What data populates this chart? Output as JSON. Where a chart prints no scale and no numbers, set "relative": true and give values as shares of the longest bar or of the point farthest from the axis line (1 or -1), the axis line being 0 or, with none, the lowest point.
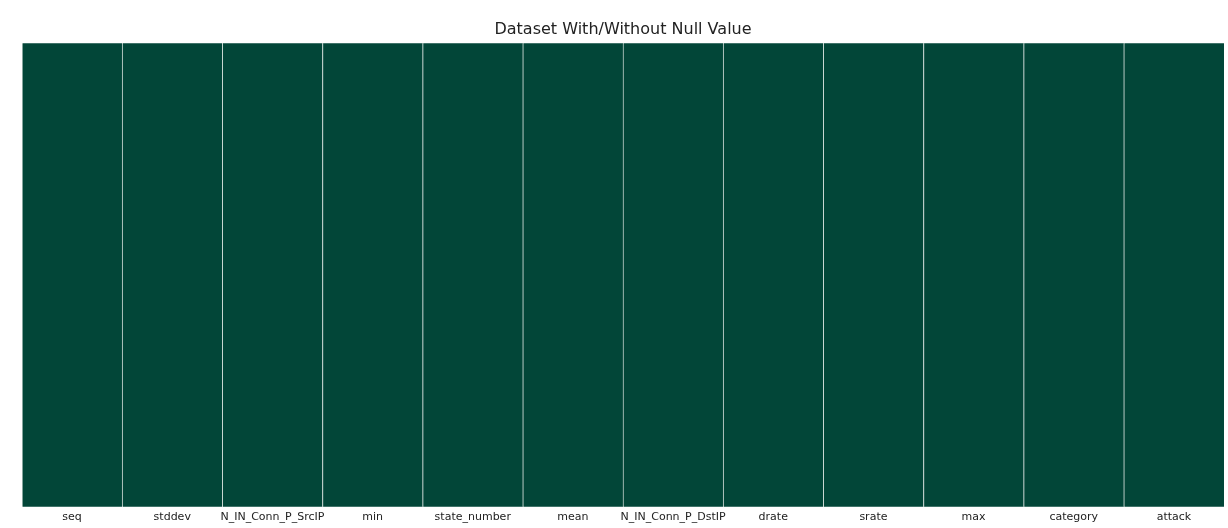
{
  "chart_data": {
    "type": "bar",
    "title": "Dataset With/Without Null Value",
    "relative": true,
    "categories": [
      "seq",
      "stddev",
      "N_IN_Conn_P_SrcIP",
      "min",
      "state_number",
      "mean",
      "N_IN_Conn_P_DstIP",
      "drate",
      "srate",
      "max",
      "category",
      "attack"
    ],
    "values": [
      1,
      1,
      1,
      1,
      1,
      1,
      1,
      1,
      1,
      1,
      1,
      1
    ],
    "color": "#024638",
    "grid": false,
    "legend": false
  }
}
